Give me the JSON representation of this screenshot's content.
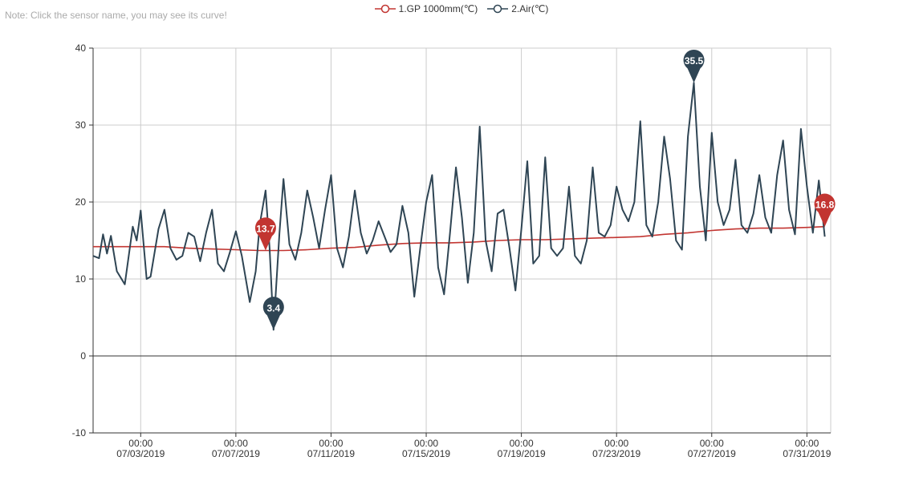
{
  "note": "Note: Click the sensor name, you may see its curve!",
  "legend": [
    {
      "name": "1.GP 1000mm(℃)",
      "color": "#c23531"
    },
    {
      "name": "2.Air(℃)",
      "color": "#2f4554"
    }
  ],
  "chart_data": {
    "type": "line",
    "xlabel": "",
    "ylabel": "",
    "x_range": [
      "2019-07-01T00:00",
      "2019-08-01T00:00"
    ],
    "ylim": [
      -10,
      40
    ],
    "yticks": [
      -10,
      0,
      10,
      20,
      30,
      40
    ],
    "xticks": [
      {
        "time": "2019-07-03T00:00",
        "line1": "00:00",
        "line2": "07/03/2019"
      },
      {
        "time": "2019-07-07T00:00",
        "line1": "00:00",
        "line2": "07/07/2019"
      },
      {
        "time": "2019-07-11T00:00",
        "line1": "00:00",
        "line2": "07/11/2019"
      },
      {
        "time": "2019-07-15T00:00",
        "line1": "00:00",
        "line2": "07/15/2019"
      },
      {
        "time": "2019-07-19T00:00",
        "line1": "00:00",
        "line2": "07/19/2019"
      },
      {
        "time": "2019-07-23T00:00",
        "line1": "00:00",
        "line2": "07/23/2019"
      },
      {
        "time": "2019-07-27T00:00",
        "line1": "00:00",
        "line2": "07/27/2019"
      },
      {
        "time": "2019-07-31T00:00",
        "line1": "00:00",
        "line2": "07/31/2019"
      }
    ],
    "grid": true,
    "legend_position": "top-center",
    "series": [
      {
        "name": "1.GP 1000mm(℃)",
        "color": "#c23531",
        "points": [
          [
            "2019-07-01T00:00",
            14.2
          ],
          [
            "2019-07-02T00:00",
            14.2
          ],
          [
            "2019-07-03T00:00",
            14.2
          ],
          [
            "2019-07-04T00:00",
            14.2
          ],
          [
            "2019-07-05T00:00",
            14.0
          ],
          [
            "2019-07-06T00:00",
            13.9
          ],
          [
            "2019-07-07T00:00",
            13.8
          ],
          [
            "2019-07-08T00:00",
            13.7
          ],
          [
            "2019-07-09T00:00",
            13.7
          ],
          [
            "2019-07-10T00:00",
            13.8
          ],
          [
            "2019-07-11T00:00",
            14.0
          ],
          [
            "2019-07-12T00:00",
            14.1
          ],
          [
            "2019-07-13T00:00",
            14.4
          ],
          [
            "2019-07-14T00:00",
            14.6
          ],
          [
            "2019-07-15T00:00",
            14.7
          ],
          [
            "2019-07-16T00:00",
            14.7
          ],
          [
            "2019-07-17T00:00",
            14.8
          ],
          [
            "2019-07-18T00:00",
            15.0
          ],
          [
            "2019-07-19T00:00",
            15.1
          ],
          [
            "2019-07-20T00:00",
            15.1
          ],
          [
            "2019-07-21T00:00",
            15.2
          ],
          [
            "2019-07-22T00:00",
            15.3
          ],
          [
            "2019-07-23T00:00",
            15.4
          ],
          [
            "2019-07-24T00:00",
            15.5
          ],
          [
            "2019-07-25T00:00",
            15.8
          ],
          [
            "2019-07-26T00:00",
            16.0
          ],
          [
            "2019-07-27T00:00",
            16.3
          ],
          [
            "2019-07-28T00:00",
            16.5
          ],
          [
            "2019-07-29T00:00",
            16.6
          ],
          [
            "2019-07-30T00:00",
            16.6
          ],
          [
            "2019-07-31T00:00",
            16.7
          ],
          [
            "2019-07-31T18:00",
            16.8
          ]
        ]
      },
      {
        "name": "2.Air(℃)",
        "color": "#2f4554",
        "points": [
          [
            "2019-07-01T00:00",
            13.0
          ],
          [
            "2019-07-01T06:00",
            12.7
          ],
          [
            "2019-07-01T10:00",
            15.8
          ],
          [
            "2019-07-01T14:00",
            13.3
          ],
          [
            "2019-07-01T18:00",
            15.6
          ],
          [
            "2019-07-02T00:00",
            11.0
          ],
          [
            "2019-07-02T08:00",
            9.3
          ],
          [
            "2019-07-02T16:00",
            16.8
          ],
          [
            "2019-07-02T20:00",
            15.0
          ],
          [
            "2019-07-03T00:00",
            18.9
          ],
          [
            "2019-07-03T06:00",
            10.0
          ],
          [
            "2019-07-03T10:00",
            10.3
          ],
          [
            "2019-07-03T18:00",
            16.5
          ],
          [
            "2019-07-04T00:00",
            19.0
          ],
          [
            "2019-07-04T06:00",
            14.0
          ],
          [
            "2019-07-04T12:00",
            12.5
          ],
          [
            "2019-07-04T18:00",
            13.0
          ],
          [
            "2019-07-05T00:00",
            16.0
          ],
          [
            "2019-07-05T06:00",
            15.5
          ],
          [
            "2019-07-05T12:00",
            12.3
          ],
          [
            "2019-07-05T18:00",
            16.0
          ],
          [
            "2019-07-06T00:00",
            19.0
          ],
          [
            "2019-07-06T06:00",
            12.0
          ],
          [
            "2019-07-06T12:00",
            11.0
          ],
          [
            "2019-07-06T18:00",
            13.5
          ],
          [
            "2019-07-07T00:00",
            16.2
          ],
          [
            "2019-07-07T06:00",
            13.0
          ],
          [
            "2019-07-07T14:00",
            7.0
          ],
          [
            "2019-07-07T20:00",
            11.0
          ],
          [
            "2019-07-08T00:00",
            17.0
          ],
          [
            "2019-07-08T06:00",
            21.5
          ],
          [
            "2019-07-08T10:00",
            14.0
          ],
          [
            "2019-07-08T14:00",
            3.4
          ],
          [
            "2019-07-08T20:00",
            16.0
          ],
          [
            "2019-07-09T00:00",
            23.0
          ],
          [
            "2019-07-09T06:00",
            14.5
          ],
          [
            "2019-07-09T12:00",
            12.5
          ],
          [
            "2019-07-09T18:00",
            16.0
          ],
          [
            "2019-07-10T00:00",
            21.5
          ],
          [
            "2019-07-10T06:00",
            18.0
          ],
          [
            "2019-07-10T12:00",
            14.0
          ],
          [
            "2019-07-10T18:00",
            19.0
          ],
          [
            "2019-07-11T00:00",
            23.5
          ],
          [
            "2019-07-11T06:00",
            14.0
          ],
          [
            "2019-07-11T12:00",
            11.5
          ],
          [
            "2019-07-11T18:00",
            15.5
          ],
          [
            "2019-07-12T00:00",
            21.5
          ],
          [
            "2019-07-12T06:00",
            16.0
          ],
          [
            "2019-07-12T12:00",
            13.3
          ],
          [
            "2019-07-12T18:00",
            15.0
          ],
          [
            "2019-07-13T00:00",
            17.5
          ],
          [
            "2019-07-13T06:00",
            15.5
          ],
          [
            "2019-07-13T12:00",
            13.5
          ],
          [
            "2019-07-13T18:00",
            14.5
          ],
          [
            "2019-07-14T00:00",
            19.5
          ],
          [
            "2019-07-14T06:00",
            16.0
          ],
          [
            "2019-07-14T12:00",
            7.7
          ],
          [
            "2019-07-14T18:00",
            14.0
          ],
          [
            "2019-07-15T00:00",
            20.0
          ],
          [
            "2019-07-15T06:00",
            23.5
          ],
          [
            "2019-07-15T12:00",
            11.5
          ],
          [
            "2019-07-15T18:00",
            8.0
          ],
          [
            "2019-07-16T00:00",
            16.0
          ],
          [
            "2019-07-16T06:00",
            24.5
          ],
          [
            "2019-07-16T12:00",
            18.0
          ],
          [
            "2019-07-16T18:00",
            9.5
          ],
          [
            "2019-07-17T00:00",
            16.0
          ],
          [
            "2019-07-17T06:00",
            29.8
          ],
          [
            "2019-07-17T12:00",
            15.0
          ],
          [
            "2019-07-17T18:00",
            11.0
          ],
          [
            "2019-07-18T00:00",
            18.5
          ],
          [
            "2019-07-18T06:00",
            19.0
          ],
          [
            "2019-07-18T12:00",
            14.0
          ],
          [
            "2019-07-18T18:00",
            8.5
          ],
          [
            "2019-07-19T00:00",
            16.5
          ],
          [
            "2019-07-19T06:00",
            25.3
          ],
          [
            "2019-07-19T12:00",
            12.0
          ],
          [
            "2019-07-19T18:00",
            13.0
          ],
          [
            "2019-07-20T00:00",
            25.8
          ],
          [
            "2019-07-20T06:00",
            14.0
          ],
          [
            "2019-07-20T12:00",
            13.0
          ],
          [
            "2019-07-20T18:00",
            14.0
          ],
          [
            "2019-07-21T00:00",
            22.0
          ],
          [
            "2019-07-21T06:00",
            13.0
          ],
          [
            "2019-07-21T12:00",
            12.0
          ],
          [
            "2019-07-21T18:00",
            15.0
          ],
          [
            "2019-07-22T00:00",
            24.5
          ],
          [
            "2019-07-22T06:00",
            16.0
          ],
          [
            "2019-07-22T12:00",
            15.5
          ],
          [
            "2019-07-22T18:00",
            17.0
          ],
          [
            "2019-07-23T00:00",
            22.0
          ],
          [
            "2019-07-23T06:00",
            19.0
          ],
          [
            "2019-07-23T12:00",
            17.5
          ],
          [
            "2019-07-23T18:00",
            20.0
          ],
          [
            "2019-07-24T00:00",
            30.5
          ],
          [
            "2019-07-24T06:00",
            17.0
          ],
          [
            "2019-07-24T12:00",
            15.5
          ],
          [
            "2019-07-24T18:00",
            20.0
          ],
          [
            "2019-07-25T00:00",
            28.5
          ],
          [
            "2019-07-25T06:00",
            23.0
          ],
          [
            "2019-07-25T12:00",
            15.0
          ],
          [
            "2019-07-25T18:00",
            13.8
          ],
          [
            "2019-07-26T00:00",
            28.5
          ],
          [
            "2019-07-26T06:00",
            35.5
          ],
          [
            "2019-07-26T12:00",
            22.0
          ],
          [
            "2019-07-26T18:00",
            15.0
          ],
          [
            "2019-07-27T00:00",
            29.0
          ],
          [
            "2019-07-27T06:00",
            20.0
          ],
          [
            "2019-07-27T12:00",
            17.0
          ],
          [
            "2019-07-27T18:00",
            19.0
          ],
          [
            "2019-07-28T00:00",
            25.5
          ],
          [
            "2019-07-28T06:00",
            17.0
          ],
          [
            "2019-07-28T12:00",
            16.0
          ],
          [
            "2019-07-28T18:00",
            18.5
          ],
          [
            "2019-07-29T00:00",
            23.5
          ],
          [
            "2019-07-29T06:00",
            18.0
          ],
          [
            "2019-07-29T12:00",
            16.0
          ],
          [
            "2019-07-29T18:00",
            23.5
          ],
          [
            "2019-07-30T00:00",
            28.0
          ],
          [
            "2019-07-30T06:00",
            19.0
          ],
          [
            "2019-07-30T12:00",
            15.8
          ],
          [
            "2019-07-30T18:00",
            29.5
          ],
          [
            "2019-07-31T00:00",
            22.0
          ],
          [
            "2019-07-31T06:00",
            16.0
          ],
          [
            "2019-07-31T12:00",
            22.8
          ],
          [
            "2019-07-31T18:00",
            15.5
          ]
        ]
      }
    ],
    "markers": [
      {
        "series": "1.GP 1000mm(℃)",
        "label": "13.7",
        "time": "2019-07-08T06:00",
        "value": 13.7,
        "color": "#c23531"
      },
      {
        "series": "1.GP 1000mm(℃)",
        "label": "16.8",
        "time": "2019-07-31T18:00",
        "value": 16.8,
        "color": "#c23531"
      },
      {
        "series": "2.Air(℃)",
        "label": "3.4",
        "time": "2019-07-08T14:00",
        "value": 3.4,
        "color": "#2f4554"
      },
      {
        "series": "2.Air(℃)",
        "label": "35.5",
        "time": "2019-07-26T06:00",
        "value": 35.5,
        "color": "#2f4554"
      }
    ]
  }
}
